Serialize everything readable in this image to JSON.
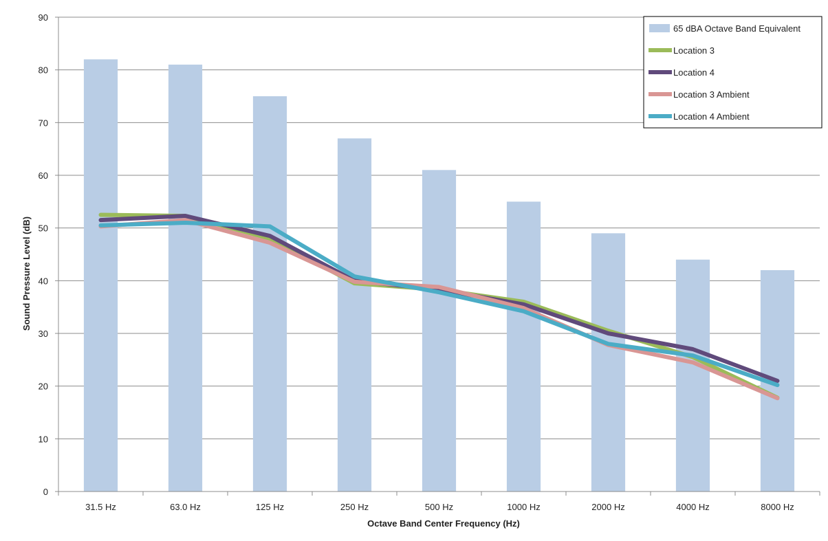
{
  "chart_data": {
    "type": "bar",
    "categories": [
      "31.5 Hz",
      "63.0 Hz",
      "125 Hz",
      "250 Hz",
      "500 Hz",
      "1000 Hz",
      "2000 Hz",
      "4000 Hz",
      "8000 Hz"
    ],
    "xlabel": "Octave Band Center Frequency  (Hz)",
    "ylabel": "Sound Pressure  Level (dB)",
    "ylim": [
      0,
      90
    ],
    "yticks": [
      0,
      10,
      20,
      30,
      40,
      50,
      60,
      70,
      80,
      90
    ],
    "grid": true,
    "legend_position": "top-right",
    "bar_series": {
      "name": "65 dBA Octave Band Equivalent",
      "color": "#b9cde5",
      "values": [
        82,
        81,
        75,
        67,
        61,
        55,
        49,
        44,
        42
      ]
    },
    "line_series": [
      {
        "name": "Location 3",
        "color": "#9bbb59",
        "values": [
          52.5,
          52.3,
          48,
          39.5,
          38.3,
          36,
          30.5,
          25.5,
          17.8
        ]
      },
      {
        "name": "Location 4",
        "color": "#604a7b",
        "values": [
          51.5,
          52.3,
          48.5,
          40,
          38.3,
          35.5,
          30,
          27,
          21
        ]
      },
      {
        "name": "Location 3 Ambient",
        "color": "#d99694",
        "values": [
          50.3,
          51.5,
          47.2,
          39.8,
          38.8,
          34.8,
          27.8,
          24.5,
          17.7
        ]
      },
      {
        "name": "Location 4 Ambient",
        "color": "#4bacc6",
        "values": [
          50.5,
          51,
          50.3,
          40.8,
          37.8,
          34.2,
          28,
          25.8,
          20.2
        ]
      }
    ]
  }
}
